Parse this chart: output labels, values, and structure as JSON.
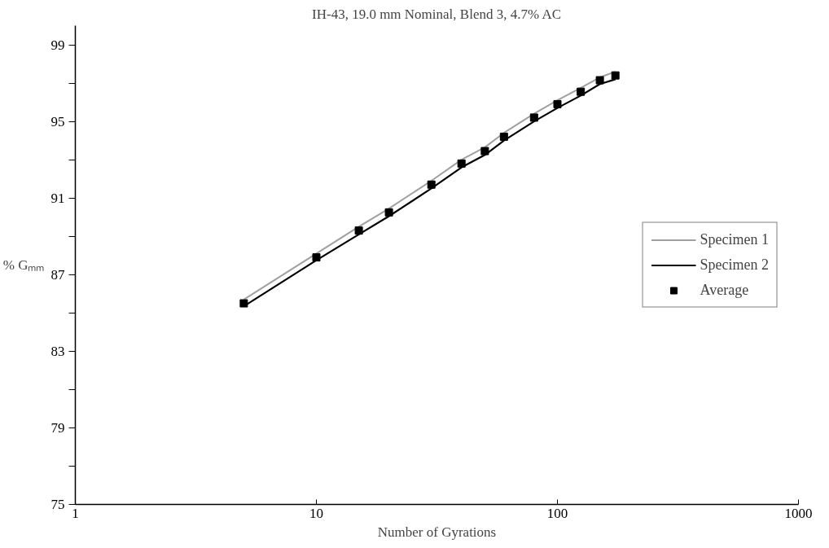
{
  "chart_data": {
    "type": "line",
    "title": "IH-43, 19.0 mm Nominal, Blend 3, 4.7% AC",
    "xlabel": "Number of Gyrations",
    "ylabel": "% Gₘₘ",
    "log": "x",
    "xlim": [
      1,
      1000
    ],
    "xticks": [
      1,
      10,
      100,
      1000
    ],
    "ylim": [
      75,
      100
    ],
    "yticks": [
      75,
      {
        "value": 77,
        "label": null
      },
      79,
      {
        "value": 81,
        "label": null
      },
      83,
      {
        "value": 85,
        "label": null
      },
      87,
      {
        "value": 89,
        "label": null
      },
      91,
      {
        "value": 93,
        "label": null
      },
      95,
      {
        "value": 97,
        "label": null
      },
      99
    ],
    "grid": false,
    "legend": "right",
    "series": [
      {
        "name": "Specimen 1",
        "color": "#a0a0a0",
        "marker": "none",
        "x": [
          5,
          10,
          15,
          20,
          30,
          40,
          50,
          60,
          80,
          100,
          125,
          150,
          174
        ],
        "values": [
          85.7,
          88.1,
          89.5,
          90.45,
          91.9,
          93.0,
          93.65,
          94.4,
          95.4,
          96.1,
          96.75,
          97.3,
          97.6
        ]
      },
      {
        "name": "Specimen 2",
        "color": "#000000",
        "marker": "none",
        "x": [
          5,
          10,
          15,
          20,
          30,
          40,
          50,
          60,
          80,
          100,
          125,
          150,
          174
        ],
        "values": [
          85.35,
          87.75,
          89.1,
          90.05,
          91.5,
          92.6,
          93.25,
          94.0,
          95.0,
          95.7,
          96.35,
          96.95,
          97.2
        ]
      },
      {
        "name": "Average",
        "type": "scatter",
        "color": "#000000",
        "marker": "square",
        "x": [
          5,
          10,
          15,
          20,
          30,
          40,
          50,
          60,
          80,
          100,
          125,
          150,
          174
        ],
        "values": [
          85.5,
          87.9,
          89.3,
          90.25,
          91.7,
          92.8,
          93.45,
          94.2,
          95.2,
          95.9,
          96.55,
          97.15,
          97.4
        ]
      }
    ]
  }
}
